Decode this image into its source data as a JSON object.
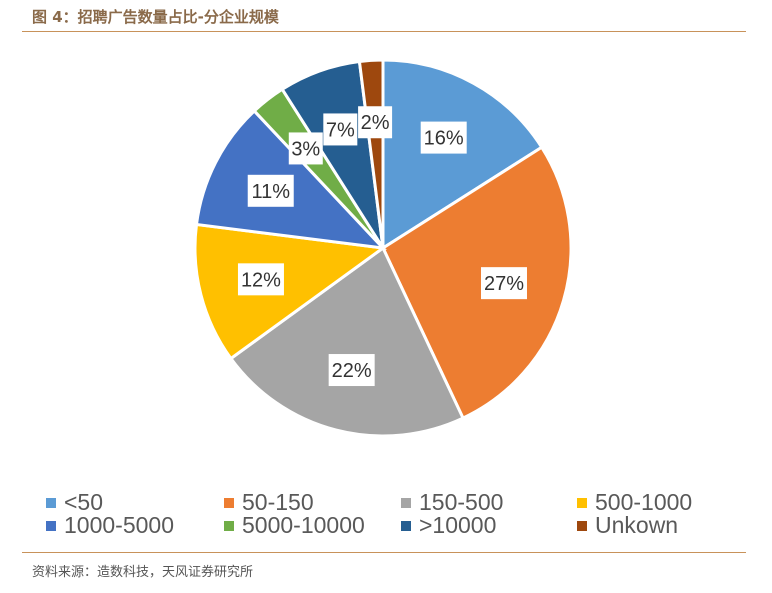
{
  "title": "图 4：招聘广告数量占比-分企业规模",
  "source": "资料来源：造数科技，天风证券研究所",
  "chart_data": {
    "type": "pie",
    "title": "",
    "categories": [
      "<50",
      "50-150",
      "150-500",
      "500-1000",
      "1000-5000",
      "5000-10000",
      ">10000",
      "Unkown"
    ],
    "values": [
      16,
      27,
      22,
      12,
      11,
      3,
      7,
      2
    ],
    "labels": [
      "16%",
      "27%",
      "22%",
      "12%",
      "11%",
      "3%",
      "7%",
      "2%"
    ],
    "colors": [
      "#5b9bd5",
      "#ed7d31",
      "#a5a5a5",
      "#ffc000",
      "#4472c4",
      "#70ad47",
      "#255e91",
      "#9e480e"
    ],
    "legend": "bottom",
    "start": "top",
    "direction": "clockwise"
  }
}
